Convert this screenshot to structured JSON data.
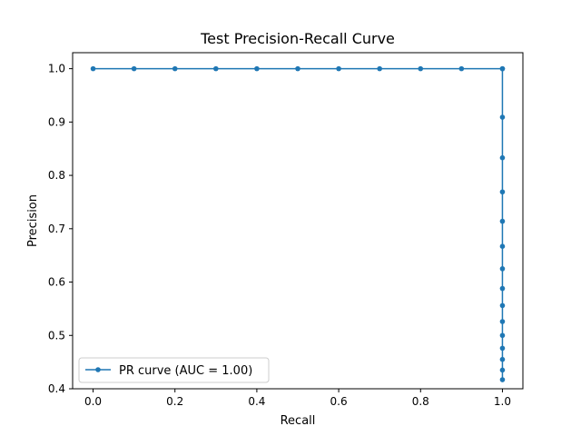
{
  "chart_data": {
    "type": "line",
    "title": "Test Precision-Recall Curve",
    "xlabel": "Recall",
    "ylabel": "Precision",
    "xlim": [
      -0.05,
      1.05
    ],
    "ylim": [
      0.4,
      1.03
    ],
    "xticks": [
      "0.0",
      "0.2",
      "0.4",
      "0.6",
      "0.8",
      "1.0"
    ],
    "yticks": [
      "0.4",
      "0.5",
      "0.6",
      "0.7",
      "0.8",
      "0.9",
      "1.0"
    ],
    "grid": false,
    "legend_position": "lower-left",
    "series": [
      {
        "name": "PR curve (AUC = 1.00)",
        "color": "#1f77b4",
        "marker": "circle",
        "x": [
          0.0,
          0.1,
          0.2,
          0.3,
          0.4,
          0.5,
          0.6,
          0.7,
          0.8,
          0.9,
          1.0,
          1.0,
          1.0,
          1.0,
          1.0,
          1.0,
          1.0,
          1.0,
          1.0,
          1.0,
          1.0,
          1.0,
          1.0,
          1.0,
          1.0,
          1.0
        ],
        "y": [
          1.0,
          1.0,
          1.0,
          1.0,
          1.0,
          1.0,
          1.0,
          1.0,
          1.0,
          1.0,
          1.0,
          0.909,
          0.833,
          0.769,
          0.714,
          0.667,
          0.625,
          0.588,
          0.556,
          0.526,
          0.5,
          0.476,
          0.455,
          0.435,
          0.417,
          1.0
        ]
      }
    ]
  }
}
